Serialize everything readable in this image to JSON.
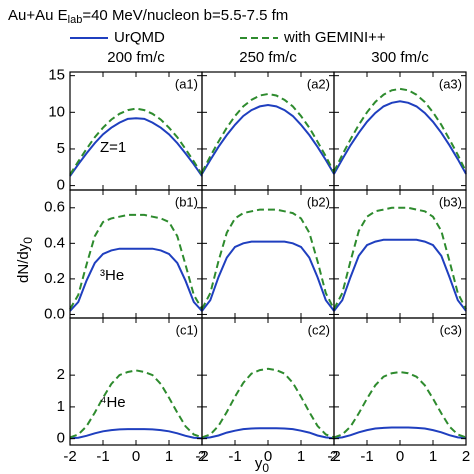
{
  "figure": {
    "title": [
      "Au+Au E",
      "lab",
      "=40 MeV/nucleon  b=5.5-7.5 fm"
    ],
    "columns": [
      "200 fm/c",
      "250 fm/c",
      "300 fm/c"
    ],
    "ylabel": [
      "dN/dy",
      "0"
    ],
    "xlabel": [
      "y",
      "0"
    ]
  },
  "chart_data": [
    {
      "type": "line",
      "label": "(a1)",
      "annotation": "Z=1",
      "x": [
        -2,
        -1.75,
        -1.5,
        -1.25,
        -1,
        -0.75,
        -0.5,
        -0.25,
        0,
        0.25,
        0.5,
        0.75,
        1,
        1.25,
        1.5,
        1.75,
        2
      ],
      "xlim": [
        -2,
        2
      ],
      "xticks": [
        -2,
        -1,
        0,
        1,
        2
      ],
      "ylim": [
        -0.6,
        15.5
      ],
      "yticks": [
        0,
        5,
        10,
        15
      ],
      "series": [
        {
          "name": "UrQMD",
          "color": "#1f3fbf",
          "values": [
            1.3,
            2.9,
            4.4,
            5.8,
            7.0,
            7.9,
            8.6,
            9.1,
            9.2,
            9.1,
            8.6,
            7.9,
            7.0,
            5.8,
            4.4,
            2.9,
            1.3
          ]
        },
        {
          "name": "with GEMINI++",
          "color": "#2e8b2e",
          "values": [
            1.5,
            3.3,
            5.0,
            6.6,
            7.9,
            9.0,
            9.8,
            10.3,
            10.5,
            10.3,
            9.8,
            9.0,
            7.9,
            6.6,
            5.0,
            3.3,
            1.5
          ]
        }
      ]
    },
    {
      "type": "line",
      "label": "(a2)",
      "x": [
        -2,
        -1.75,
        -1.5,
        -1.25,
        -1,
        -0.75,
        -0.5,
        -0.25,
        0,
        0.25,
        0.5,
        0.75,
        1,
        1.25,
        1.5,
        1.75,
        2
      ],
      "xlim": [
        -2,
        2
      ],
      "xticks": [
        -2,
        -1,
        0,
        1,
        2
      ],
      "ylim": [
        -0.6,
        15.5
      ],
      "yticks": [
        0,
        5,
        10,
        15
      ],
      "series": [
        {
          "name": "UrQMD",
          "color": "#1f3fbf",
          "values": [
            1.6,
            3.5,
            5.3,
            6.9,
            8.3,
            9.5,
            10.3,
            10.8,
            11,
            10.8,
            10.3,
            9.5,
            8.3,
            6.9,
            5.3,
            3.5,
            1.6
          ]
        },
        {
          "name": "with GEMINI++",
          "color": "#2e8b2e",
          "values": [
            1.8,
            4.0,
            6.0,
            7.9,
            9.5,
            10.8,
            11.7,
            12.3,
            12.5,
            12.3,
            11.7,
            10.8,
            9.5,
            7.9,
            6.0,
            4.0,
            1.8
          ]
        }
      ]
    },
    {
      "type": "line",
      "label": "(a3)",
      "x": [
        -2,
        -1.75,
        -1.5,
        -1.25,
        -1,
        -0.75,
        -0.5,
        -0.25,
        0,
        0.25,
        0.5,
        0.75,
        1,
        1.25,
        1.5,
        1.75,
        2
      ],
      "xlim": [
        -2,
        2
      ],
      "xticks": [
        -2,
        -1,
        0,
        1,
        2
      ],
      "ylim": [
        -0.6,
        15.5
      ],
      "yticks": [
        0,
        5,
        10,
        15
      ],
      "series": [
        {
          "name": "UrQMD",
          "color": "#1f3fbf",
          "values": [
            1.6,
            3.6,
            5.5,
            7.2,
            8.7,
            9.9,
            10.8,
            11.3,
            11.5,
            11.3,
            10.8,
            9.9,
            8.7,
            7.2,
            5.5,
            3.6,
            1.6
          ]
        },
        {
          "name": "with GEMINI++",
          "color": "#2e8b2e",
          "values": [
            1.9,
            4.2,
            6.3,
            8.3,
            10.0,
            11.4,
            12.4,
            13.0,
            13.2,
            13.0,
            12.4,
            11.4,
            10.0,
            8.3,
            6.3,
            4.2,
            1.9
          ]
        }
      ]
    },
    {
      "type": "line",
      "label": "(b1)",
      "annotation": "³He",
      "x": [
        -2,
        -1.75,
        -1.5,
        -1.25,
        -1,
        -0.75,
        -0.5,
        -0.25,
        0,
        0.25,
        0.5,
        0.75,
        1,
        1.25,
        1.5,
        1.75,
        2
      ],
      "xlim": [
        -2,
        2
      ],
      "xticks": [
        -2,
        -1,
        0,
        1,
        2
      ],
      "ylim": [
        -0.02,
        0.7
      ],
      "yticks": [
        {
          "value": 0,
          "label": "0.0"
        },
        {
          "value": 0.2,
          "label": "0.2"
        },
        {
          "value": 0.4,
          "label": "0.4"
        },
        {
          "value": 0.6,
          "label": "0.6"
        }
      ],
      "series": [
        {
          "name": "UrQMD",
          "color": "#1f3fbf",
          "values": [
            0.02,
            0.07,
            0.19,
            0.29,
            0.34,
            0.36,
            0.37,
            0.37,
            0.37,
            0.37,
            0.37,
            0.36,
            0.34,
            0.29,
            0.19,
            0.07,
            0.02
          ]
        },
        {
          "name": "with GEMINI++",
          "color": "#2e8b2e",
          "values": [
            0.03,
            0.11,
            0.28,
            0.44,
            0.52,
            0.54,
            0.55,
            0.56,
            0.56,
            0.56,
            0.55,
            0.54,
            0.52,
            0.44,
            0.28,
            0.11,
            0.03
          ]
        }
      ]
    },
    {
      "type": "line",
      "label": "(b2)",
      "x": [
        -2,
        -1.75,
        -1.5,
        -1.25,
        -1,
        -0.75,
        -0.5,
        -0.25,
        0,
        0.25,
        0.5,
        0.75,
        1,
        1.25,
        1.5,
        1.75,
        2
      ],
      "xlim": [
        -2,
        2
      ],
      "xticks": [
        -2,
        -1,
        0,
        1,
        2
      ],
      "ylim": [
        -0.02,
        0.7
      ],
      "yticks": [
        {
          "value": 0,
          "label": "0.0"
        },
        {
          "value": 0.2,
          "label": "0.2"
        },
        {
          "value": 0.4,
          "label": "0.4"
        },
        {
          "value": 0.6,
          "label": "0.6"
        }
      ],
      "series": [
        {
          "name": "UrQMD",
          "color": "#1f3fbf",
          "values": [
            0.02,
            0.08,
            0.21,
            0.32,
            0.38,
            0.4,
            0.41,
            0.41,
            0.41,
            0.41,
            0.41,
            0.4,
            0.38,
            0.32,
            0.21,
            0.08,
            0.02
          ]
        },
        {
          "name": "with GEMINI++",
          "color": "#2e8b2e",
          "values": [
            0.03,
            0.12,
            0.3,
            0.46,
            0.54,
            0.57,
            0.58,
            0.59,
            0.59,
            0.59,
            0.58,
            0.57,
            0.54,
            0.46,
            0.3,
            0.12,
            0.03
          ]
        }
      ]
    },
    {
      "type": "line",
      "label": "(b3)",
      "x": [
        -2,
        -1.75,
        -1.5,
        -1.25,
        -1,
        -0.75,
        -0.5,
        -0.25,
        0,
        0.25,
        0.5,
        0.75,
        1,
        1.25,
        1.5,
        1.75,
        2
      ],
      "xlim": [
        -2,
        2
      ],
      "xticks": [
        -2,
        -1,
        0,
        1,
        2
      ],
      "ylim": [
        -0.02,
        0.7
      ],
      "yticks": [
        {
          "value": 0,
          "label": "0.0"
        },
        {
          "value": 0.2,
          "label": "0.2"
        },
        {
          "value": 0.4,
          "label": "0.4"
        },
        {
          "value": 0.6,
          "label": "0.6"
        }
      ],
      "series": [
        {
          "name": "UrQMD",
          "color": "#1f3fbf",
          "values": [
            0.02,
            0.08,
            0.21,
            0.33,
            0.39,
            0.41,
            0.42,
            0.42,
            0.42,
            0.42,
            0.42,
            0.41,
            0.39,
            0.33,
            0.21,
            0.08,
            0.02
          ]
        },
        {
          "name": "with GEMINI++",
          "color": "#2e8b2e",
          "values": [
            0.03,
            0.12,
            0.3,
            0.47,
            0.55,
            0.58,
            0.59,
            0.6,
            0.6,
            0.6,
            0.59,
            0.58,
            0.55,
            0.47,
            0.3,
            0.12,
            0.03
          ]
        }
      ]
    },
    {
      "type": "line",
      "label": "(c1)",
      "annotation": "⁴He",
      "x": [
        -2,
        -1.75,
        -1.5,
        -1.25,
        -1,
        -0.75,
        -0.5,
        -0.25,
        0,
        0.25,
        0.5,
        0.75,
        1,
        1.25,
        1.5,
        1.75,
        2
      ],
      "xlim": [
        -2,
        2
      ],
      "xticks": [
        -2,
        -1,
        0,
        1,
        2
      ],
      "ylim": [
        -0.2,
        3.8
      ],
      "yticks": [
        0,
        1,
        2
      ],
      "series": [
        {
          "name": "UrQMD",
          "color": "#1f3fbf",
          "values": [
            0.01,
            0.03,
            0.09,
            0.17,
            0.23,
            0.27,
            0.29,
            0.3,
            0.3,
            0.3,
            0.29,
            0.27,
            0.23,
            0.17,
            0.09,
            0.03,
            0.01
          ]
        },
        {
          "name": "with GEMINI++",
          "color": "#2e8b2e",
          "values": [
            0.04,
            0.13,
            0.39,
            0.82,
            1.29,
            1.72,
            2.0,
            2.1,
            2.15,
            2.1,
            2.0,
            1.72,
            1.29,
            0.82,
            0.39,
            0.13,
            0.04
          ]
        }
      ]
    },
    {
      "type": "line",
      "label": "(c2)",
      "x": [
        -2,
        -1.75,
        -1.5,
        -1.25,
        -1,
        -0.75,
        -0.5,
        -0.25,
        0,
        0.25,
        0.5,
        0.75,
        1,
        1.25,
        1.5,
        1.75,
        2
      ],
      "xlim": [
        -2,
        2
      ],
      "xticks": [
        -2,
        -1,
        0,
        1,
        2
      ],
      "ylim": [
        -0.2,
        3.8
      ],
      "yticks": [
        0,
        1,
        2
      ],
      "series": [
        {
          "name": "UrQMD",
          "color": "#1f3fbf",
          "values": [
            0.01,
            0.04,
            0.1,
            0.19,
            0.25,
            0.3,
            0.32,
            0.33,
            0.33,
            0.33,
            0.32,
            0.3,
            0.25,
            0.19,
            0.1,
            0.04,
            0.01
          ]
        },
        {
          "name": "with GEMINI++",
          "color": "#2e8b2e",
          "values": [
            0.04,
            0.13,
            0.4,
            0.84,
            1.32,
            1.76,
            2.05,
            2.16,
            2.2,
            2.16,
            2.05,
            1.76,
            1.32,
            0.84,
            0.4,
            0.13,
            0.04
          ]
        }
      ]
    },
    {
      "type": "line",
      "label": "(c3)",
      "x": [
        -2,
        -1.75,
        -1.5,
        -1.25,
        -1,
        -0.75,
        -0.5,
        -0.25,
        0,
        0.25,
        0.5,
        0.75,
        1,
        1.25,
        1.5,
        1.75,
        2
      ],
      "xlim": [
        -2,
        2
      ],
      "xticks": [
        -2,
        -1,
        0,
        1,
        2
      ],
      "ylim": [
        -0.2,
        3.8
      ],
      "yticks": [
        0,
        1,
        2
      ],
      "series": [
        {
          "name": "UrQMD",
          "color": "#1f3fbf",
          "values": [
            0.01,
            0.04,
            0.11,
            0.2,
            0.27,
            0.32,
            0.34,
            0.35,
            0.35,
            0.35,
            0.34,
            0.32,
            0.27,
            0.2,
            0.11,
            0.04,
            0.01
          ]
        },
        {
          "name": "with GEMINI++",
          "color": "#2e8b2e",
          "values": [
            0.04,
            0.13,
            0.38,
            0.8,
            1.26,
            1.68,
            1.95,
            2.06,
            2.1,
            2.06,
            1.95,
            1.68,
            1.26,
            0.8,
            0.38,
            0.13,
            0.04
          ]
        }
      ]
    }
  ]
}
